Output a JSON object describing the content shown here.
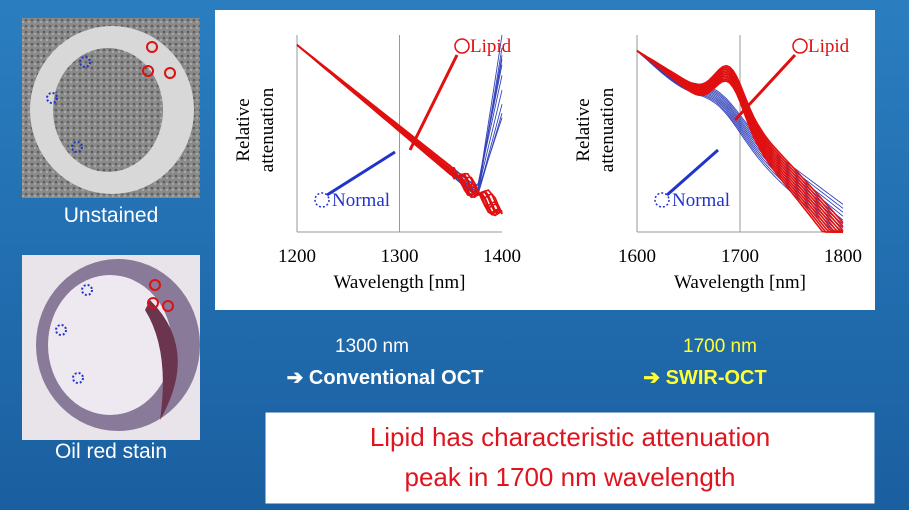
{
  "images": [
    {
      "caption": "Unstained"
    },
    {
      "caption": "Oil red stain"
    }
  ],
  "plots": [
    {
      "y_label_lines": [
        "Relative",
        "attenuation"
      ],
      "x_label": "Wavelength [nm]",
      "xlim": [
        1200,
        1400
      ],
      "xticks": [
        1200,
        1300,
        1400
      ],
      "annotations": [
        "Lipid",
        "Normal"
      ]
    },
    {
      "y_label_lines": [
        "Relative",
        "attenuation"
      ],
      "x_label": "Wavelength [nm]",
      "xlim": [
        1600,
        1800
      ],
      "xticks": [
        1600,
        1700,
        1800
      ],
      "annotations": [
        "Lipid",
        "Normal"
      ]
    }
  ],
  "captions": [
    {
      "wavelength": "1300 nm",
      "method": "➔ Conventional OCT"
    },
    {
      "wavelength": "1700 nm",
      "method": "➔ SWIR-OCT"
    }
  ],
  "message": [
    "Lipid has characteristic attenuation",
    "peak in 1700 nm wavelength"
  ]
}
